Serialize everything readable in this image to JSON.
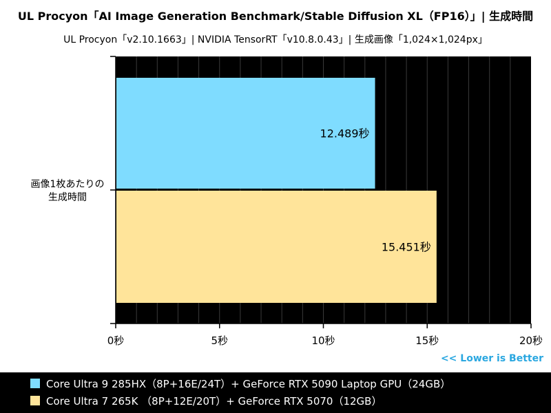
{
  "chart_data": {
    "type": "bar",
    "orientation": "horizontal",
    "title": "UL Procyon「AI Image Generation Benchmark/Stable Diffusion XL（FP16）」| 生成時間",
    "subtitle": "UL Procyon「v2.10.1663」| NVIDIA TensorRT「v10.8.0.43」| 生成画像「1,024×1,024px」",
    "categories": [
      "画像1枚あたりの\n生成時間"
    ],
    "series": [
      {
        "name": "Core Ultra 9 285HX（8P+16E/24T）+ GeForce RTX 5090 Laptop GPU（24GB）",
        "color": "#7fdcff",
        "values": [
          12.489
        ],
        "label": "12.489秒"
      },
      {
        "name": "Core Ultra 7 265K （8P+12E/20T）+ GeForce RTX 5070（12GB）",
        "color": "#ffe49a",
        "values": [
          15.451
        ],
        "label": "15.451秒"
      }
    ],
    "xlim": [
      0,
      20
    ],
    "xticks": [
      0,
      5,
      10,
      15,
      20
    ],
    "xtick_labels": [
      "0秒",
      "5秒",
      "10秒",
      "15秒",
      "20秒"
    ],
    "grid": true,
    "plot_background": "#000000",
    "grid_color": "#3a3a3a",
    "note": "<< Lower is Better",
    "note_color": "#2aa7e0",
    "legend_position": "bottom"
  }
}
